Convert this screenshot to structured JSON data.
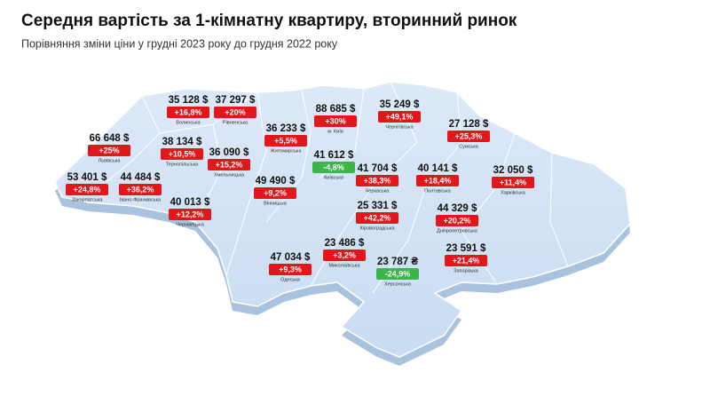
{
  "header": {
    "title": "Середня вартість за 1-кімнатну квартиру, вторинний ринок",
    "subtitle": "Порівняння зміни ціни у грудні 2023 року до грудня 2022 року"
  },
  "regions": [
    {
      "name": "Волинська",
      "price": "35 128 $",
      "change": "+16,8%"
    },
    {
      "name": "Рівненська",
      "price": "37 297 $",
      "change": "+20%"
    },
    {
      "name": "Житомирська",
      "price": "36 233 $",
      "change": "+5,5%"
    },
    {
      "name": "м. Київ",
      "price": "88 685 $",
      "change": "+30%"
    },
    {
      "name": "Чернігівська",
      "price": "35 249 $",
      "change": "+49,1%"
    },
    {
      "name": "Сумська",
      "price": "27 128 $",
      "change": "+25,3%"
    },
    {
      "name": "Львівська",
      "price": "66 648 $",
      "change": "+25%"
    },
    {
      "name": "Тернопільська",
      "price": "38 134 $",
      "change": "+10,5%"
    },
    {
      "name": "Хмельницька",
      "price": "36 090 $",
      "change": "+15,2%"
    },
    {
      "name": "Київська",
      "price": "41 612 $",
      "change": "-4,8%"
    },
    {
      "name": "Черкаська",
      "price": "41 704 $",
      "change": "+38,3%"
    },
    {
      "name": "Полтавська",
      "price": "40 141 $",
      "change": "+18,4%"
    },
    {
      "name": "Харківська",
      "price": "32 050 $",
      "change": "+11,4%"
    },
    {
      "name": "Закарпатська",
      "price": "53 401 $",
      "change": "+24,8%"
    },
    {
      "name": "Івано-Франківська",
      "price": "44 484 $",
      "change": "+36,2%"
    },
    {
      "name": "Вінницька",
      "price": "49 490 $",
      "change": "+9,2%"
    },
    {
      "name": "Чернівецька",
      "price": "40 013 $",
      "change": "+12,2%"
    },
    {
      "name": "Кіровоградська",
      "price": "25 331 $",
      "change": "+42,2%"
    },
    {
      "name": "Дніпропетровська",
      "price": "44 329 $",
      "change": "+20,2%"
    },
    {
      "name": "Миколаївська",
      "price": "23 486 $",
      "change": "+3,2%"
    },
    {
      "name": "Одеська",
      "price": "47 034 $",
      "change": "+9,3%"
    },
    {
      "name": "Херсонська",
      "price": "23 787 ₴",
      "change": "-24,9%"
    },
    {
      "name": "Запорізька",
      "price": "23 591 $",
      "change": "+21,4%"
    }
  ]
}
